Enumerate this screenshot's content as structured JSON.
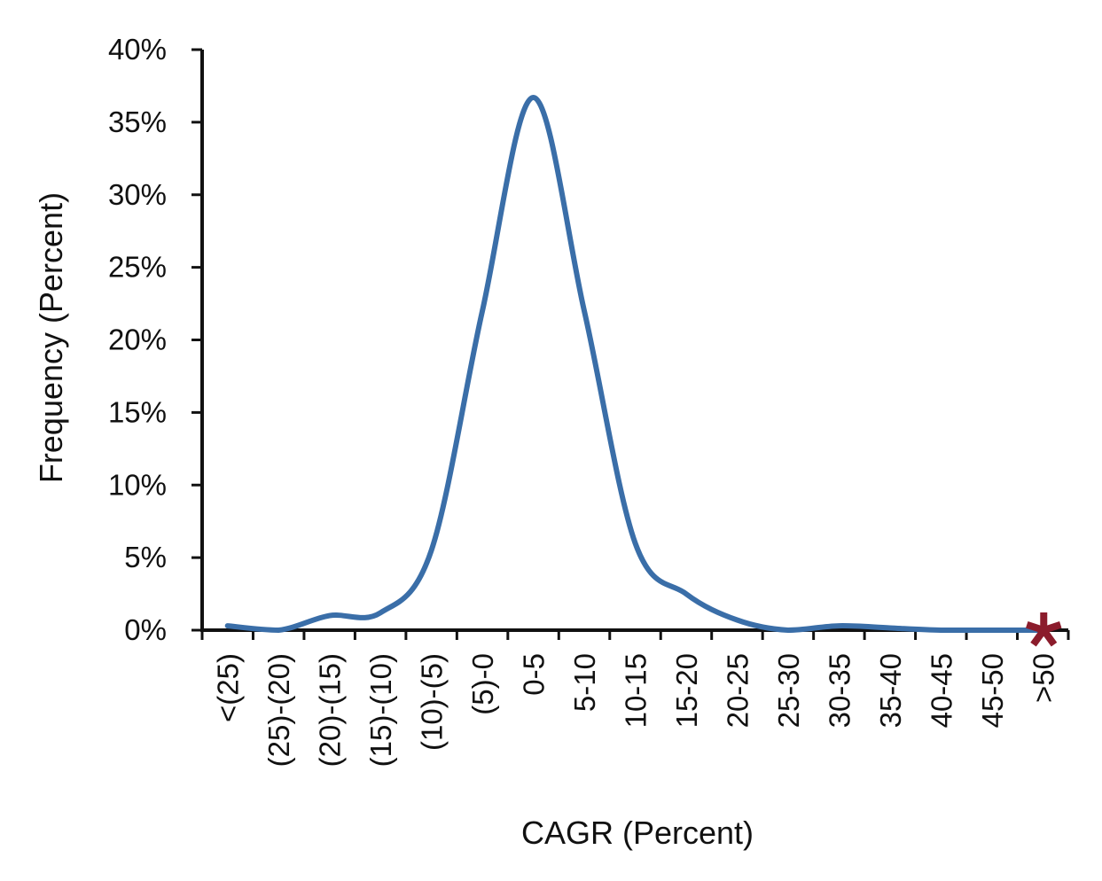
{
  "chart_data": {
    "type": "line",
    "xlabel": "CAGR (Percent)",
    "ylabel": "Frequency (Percent)",
    "categories": [
      "<(25)",
      "(25)-(20)",
      "(20)-(15)",
      "(15)-(10)",
      "(10)-(5)",
      "(5)-0",
      "0-5",
      "5-10",
      "10-15",
      "15-20",
      "20-25",
      "25-30",
      "30-35",
      "35-40",
      "40-45",
      "45-50",
      ">50"
    ],
    "values": [
      0.3,
      0.0,
      1.0,
      1.2,
      5.5,
      22.0,
      36.7,
      22.0,
      6.0,
      2.5,
      0.7,
      0.0,
      0.3,
      0.15,
      0.0,
      0.0,
      0.0
    ],
    "ylim": [
      0,
      40
    ],
    "yticks": [
      0,
      5,
      10,
      15,
      20,
      25,
      30,
      35,
      40
    ],
    "ytick_suffix": "%",
    "line_color": "#3a6ea8",
    "marker": {
      "category": ">50",
      "value": 0,
      "symbol": "*",
      "color": "#8b1c2c"
    },
    "grid": false,
    "legend": "none"
  }
}
